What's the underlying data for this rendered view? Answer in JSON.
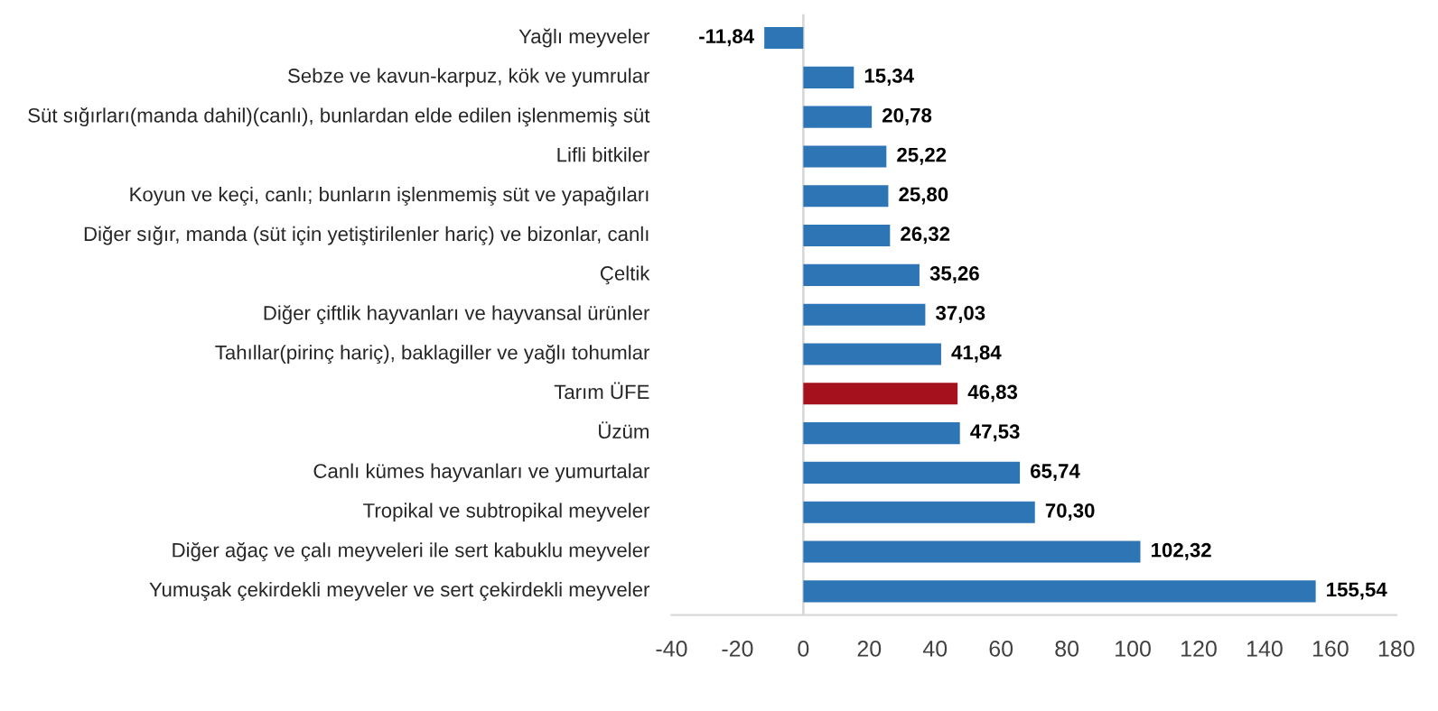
{
  "chart_data": {
    "type": "bar",
    "orientation": "horizontal",
    "categories": [
      "Yağlı meyveler",
      "Sebze ve kavun-karpuz, kök ve yumrular",
      "Süt sığırları(manda dahil)(canlı), bunlardan elde edilen işlenmemiş süt",
      "Lifli bitkiler",
      "Koyun ve keçi, canlı; bunların işlenmemiş süt ve yapağıları",
      "Diğer sığır, manda (süt için yetiştirilenler hariç) ve bizonlar, canlı",
      "Çeltik",
      "Diğer çiftlik hayvanları ve hayvansal ürünler",
      "Tahıllar(pirinç hariç), baklagiller ve yağlı tohumlar",
      "Tarım ÜFE",
      "Üzüm",
      "Canlı kümes hayvanları ve yumurtalar",
      "Tropikal ve subtropikal meyveler",
      "Diğer ağaç ve çalı meyveleri ile sert kabuklu meyveler",
      "Yumuşak çekirdekli meyveler ve sert çekirdekli meyveler"
    ],
    "values": [
      -11.84,
      15.34,
      20.78,
      25.22,
      25.8,
      26.32,
      35.26,
      37.03,
      41.84,
      46.83,
      47.53,
      65.74,
      70.3,
      102.32,
      155.54
    ],
    "value_labels": [
      "-11,84",
      "15,34",
      "20,78",
      "25,22",
      "25,80",
      "26,32",
      "35,26",
      "37,03",
      "41,84",
      "46,83",
      "47,53",
      "65,74",
      "70,30",
      "102,32",
      "155,54"
    ],
    "colors": [
      "#2e75b6",
      "#2e75b6",
      "#2e75b6",
      "#2e75b6",
      "#2e75b6",
      "#2e75b6",
      "#2e75b6",
      "#2e75b6",
      "#2e75b6",
      "#a5121d",
      "#2e75b6",
      "#2e75b6",
      "#2e75b6",
      "#2e75b6",
      "#2e75b6"
    ],
    "xlim": [
      -40,
      180
    ],
    "xticks": [
      -40,
      -20,
      0,
      20,
      40,
      60,
      80,
      100,
      120,
      140,
      160,
      180
    ],
    "ref_lines": [
      {
        "axis": "x",
        "value": 0,
        "color": "#d9d9d9"
      }
    ],
    "grid": false,
    "legend": false
  }
}
